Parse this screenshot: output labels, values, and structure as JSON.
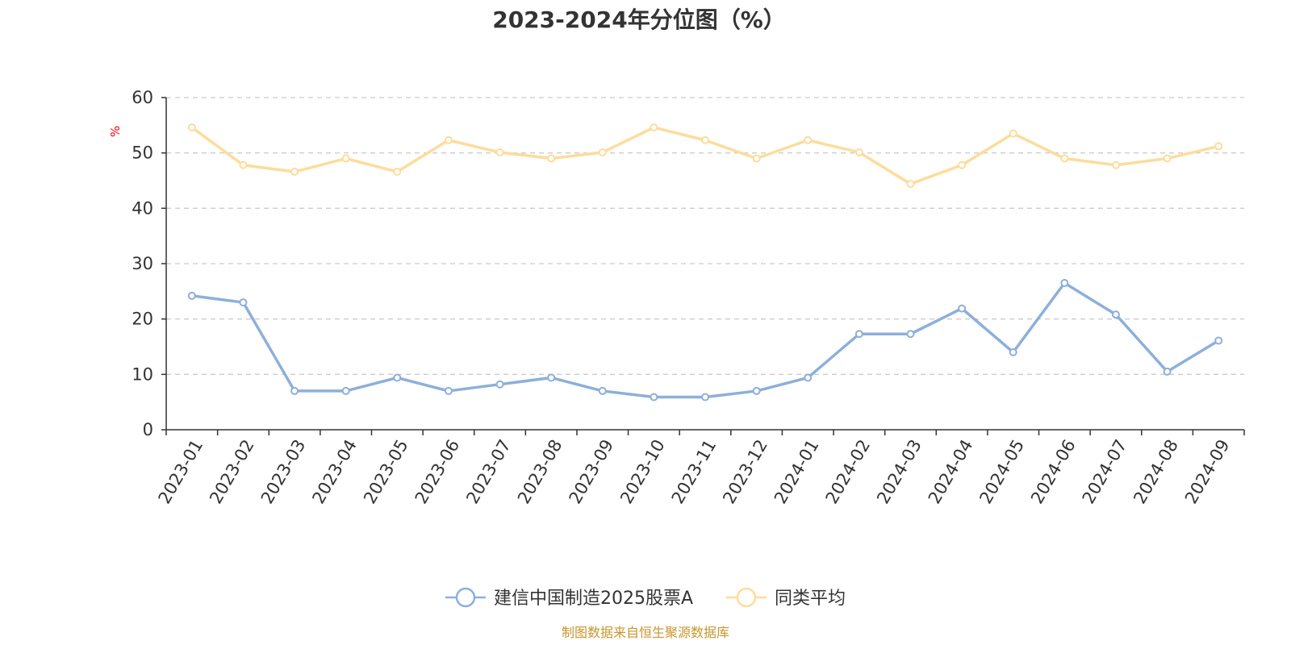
{
  "chart_data": {
    "type": "line",
    "title": "2023-2024年分位图（%）",
    "ylabel": "%",
    "ylim": [
      0,
      60
    ],
    "yticks": [
      0,
      10,
      20,
      30,
      40,
      50,
      60
    ],
    "grid": true,
    "legend_position": "bottom-center",
    "categories": [
      "2023-01",
      "2023-02",
      "2023-03",
      "2023-04",
      "2023-05",
      "2023-06",
      "2023-07",
      "2023-08",
      "2023-09",
      "2023-10",
      "2023-11",
      "2023-12",
      "2024-01",
      "2024-02",
      "2024-03",
      "2024-04",
      "2024-05",
      "2024-06",
      "2024-07",
      "2024-08",
      "2024-09"
    ],
    "series": [
      {
        "name": "建信中国制造2025股票A",
        "color": "#8eafda",
        "values": [
          24.2,
          23.0,
          7.0,
          7.0,
          9.4,
          7.0,
          8.2,
          9.4,
          7.0,
          5.9,
          5.9,
          7.0,
          9.4,
          17.3,
          17.3,
          21.9,
          14.0,
          26.5,
          20.8,
          10.5,
          16.1
        ]
      },
      {
        "name": "同类平均",
        "color": "#fddc9c",
        "values": [
          54.6,
          47.8,
          46.6,
          49.0,
          46.6,
          52.3,
          50.1,
          49.0,
          50.1,
          54.6,
          52.3,
          49.0,
          52.3,
          50.1,
          44.4,
          47.8,
          53.5,
          49.0,
          47.8,
          49.0,
          51.2
        ]
      }
    ]
  },
  "source": "制图数据来自恒生聚源数据库",
  "colors": {
    "axis": "#333333",
    "grid": "#cccccc",
    "unit_label": "#ff0000",
    "source": "#c8962e"
  }
}
